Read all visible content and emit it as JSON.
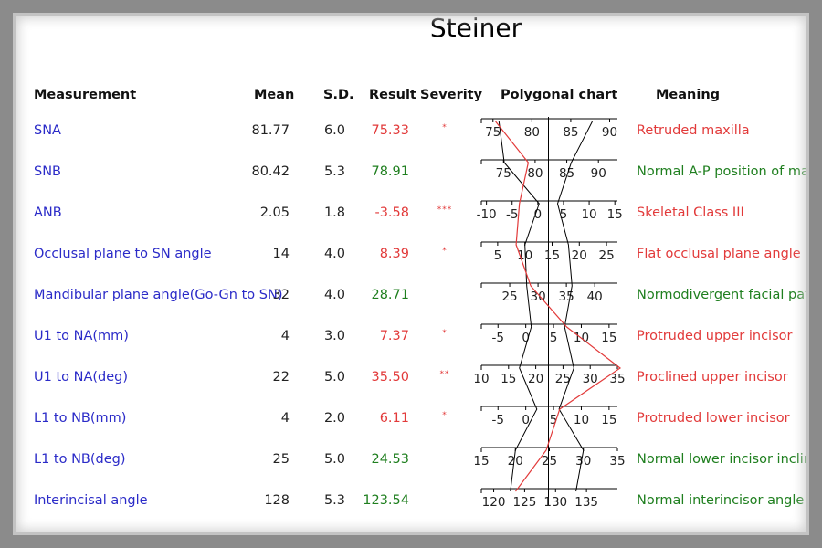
{
  "title": "Steiner",
  "headers": {
    "measurement": "Measurement",
    "mean": "Mean",
    "sd": "S.D.",
    "result": "Result",
    "severity": "Severity",
    "chart": "Polygonal chart",
    "meaning": "Meaning"
  },
  "colors": {
    "name": "#2b2bc8",
    "abnormal": "#e23a3a",
    "normal": "#1f7f1f",
    "result_line": "#e23a3a"
  },
  "rows": [
    {
      "name": "SNA",
      "mean": "81.77",
      "sd": "6.0",
      "result": "75.33",
      "severity": "*",
      "meaning": "Retruded maxilla",
      "status": "abnormal"
    },
    {
      "name": "SNB",
      "mean": "80.42",
      "sd": "5.3",
      "result": "78.91",
      "severity": "",
      "meaning": "Normal A-P position of mandi",
      "status": "normal"
    },
    {
      "name": "ANB",
      "mean": "2.05",
      "sd": "1.8",
      "result": "-3.58",
      "severity": "***",
      "meaning": "Skeletal Class III",
      "status": "abnormal"
    },
    {
      "name": "Occlusal plane to SN angle",
      "mean": "14",
      "sd": "4.0",
      "result": "8.39",
      "severity": "*",
      "meaning": "Flat occlusal plane angle",
      "status": "abnormal"
    },
    {
      "name": "Mandibular plane angle(Go-Gn to SN)",
      "mean": "32",
      "sd": "4.0",
      "result": "28.71",
      "severity": "",
      "meaning": "Normodivergent facial pattern",
      "status": "normal"
    },
    {
      "name": "U1 to NA(mm)",
      "mean": "4",
      "sd": "3.0",
      "result": "7.37",
      "severity": "*",
      "meaning": "Protruded upper incisor",
      "status": "abnormal"
    },
    {
      "name": "U1 to NA(deg)",
      "mean": "22",
      "sd": "5.0",
      "result": "35.50",
      "severity": "**",
      "meaning": "Proclined upper incisor",
      "status": "abnormal"
    },
    {
      "name": "L1 to NB(mm)",
      "mean": "4",
      "sd": "2.0",
      "result": "6.11",
      "severity": "*",
      "meaning": "Protruded lower incisor",
      "status": "abnormal"
    },
    {
      "name": "L1 to NB(deg)",
      "mean": "25",
      "sd": "5.0",
      "result": "24.53",
      "severity": "",
      "meaning": "Normal lower incisor inclination",
      "status": "normal"
    },
    {
      "name": "Interincisal angle",
      "mean": "128",
      "sd": "5.3",
      "result": "123.54",
      "severity": "",
      "meaning": "Normal interincisor angle",
      "status": "normal"
    }
  ],
  "chart_data": {
    "type": "line",
    "title": "Polygonal chart",
    "categories": [
      "SNA",
      "SNB",
      "ANB",
      "Occlusal plane to SN angle",
      "Mandibular plane angle(Go-Gn to SN)",
      "U1 to NA(mm)",
      "U1 to NA(deg)",
      "L1 to NB(mm)",
      "L1 to NB(deg)",
      "Interincisal angle"
    ],
    "mean": [
      81.77,
      80.42,
      2.05,
      14,
      32,
      4,
      22,
      4,
      25,
      128
    ],
    "sd": [
      6.0,
      5.3,
      1.8,
      4.0,
      4.0,
      3.0,
      5.0,
      2.0,
      5.0,
      5.3
    ],
    "series": [
      {
        "values": [
          75.33,
          78.91,
          -3.58,
          8.39,
          28.71,
          7.37,
          35.5,
          6.11,
          24.53,
          123.54
        ]
      }
    ],
    "axes": [
      {
        "ticks": [
          75,
          80,
          85,
          90
        ],
        "range": [
          73.5,
          91
        ]
      },
      {
        "ticks": [
          75,
          80,
          85,
          90
        ],
        "range": [
          71.5,
          93
        ]
      },
      {
        "ticks": [
          -10,
          -5,
          0,
          5,
          10,
          15
        ],
        "range": [
          -11,
          15.5
        ]
      },
      {
        "ticks": [
          5,
          10,
          15,
          20,
          25
        ],
        "range": [
          2,
          27
        ]
      },
      {
        "ticks": [
          25,
          30,
          35,
          40
        ],
        "range": [
          20,
          44
        ]
      },
      {
        "ticks": [
          -5,
          0,
          5,
          10,
          15
        ],
        "range": [
          -8,
          16.5
        ]
      },
      {
        "ticks": [
          10,
          15,
          20,
          25,
          30,
          35
        ],
        "range": [
          10,
          35
        ]
      },
      {
        "ticks": [
          -5,
          0,
          5,
          10,
          15
        ],
        "range": [
          -8,
          16.5
        ]
      },
      {
        "ticks": [
          15,
          20,
          25,
          30,
          35
        ],
        "range": [
          15,
          35
        ]
      },
      {
        "ticks": [
          120,
          125,
          130,
          135
        ],
        "range": [
          118,
          140
        ]
      }
    ],
    "bands": "mean ± 1 SD",
    "grid": false
  }
}
